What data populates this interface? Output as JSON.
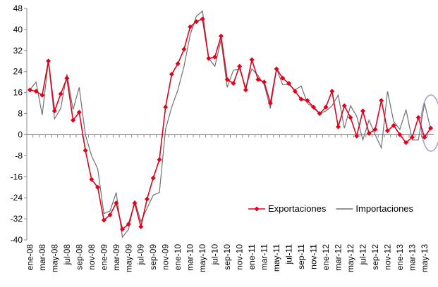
{
  "chart_data": {
    "type": "line",
    "categories": [
      "ene-08",
      null,
      "mar-08",
      null,
      "may-08",
      null,
      "jul-08",
      null,
      "sep-08",
      null,
      "nov-08",
      null,
      "ene-09",
      null,
      "mar-09",
      null,
      "may-09",
      null,
      "jul-09",
      null,
      "sep-09",
      null,
      "nov-09",
      null,
      "ene-10",
      null,
      "mar-10",
      null,
      "may-10",
      null,
      "jul-10",
      null,
      "sep-10",
      null,
      "nov-10",
      null,
      "ene-11",
      null,
      "mar-11",
      null,
      "may-11",
      null,
      "jul-11",
      null,
      "sep-11",
      null,
      "nov-11",
      null,
      "ene-12",
      null,
      "mar-12",
      null,
      "may-12",
      null,
      "jul-12",
      null,
      "sep-12",
      null,
      "nov-12",
      null,
      "ene-13",
      null,
      "mar-13",
      null,
      "may-13",
      null
    ],
    "series": [
      {
        "name": "Exportaciones",
        "color": "#e3001b",
        "marker": "diamond",
        "values": [
          17,
          16.5,
          15,
          28,
          9,
          15.5,
          21.5,
          5.5,
          8.5,
          -6,
          -17,
          -20,
          -32.5,
          -30.5,
          -26,
          -36,
          -34,
          -26,
          -35,
          -24.5,
          -16.5,
          -9.5,
          10.5,
          23,
          27,
          32.5,
          41,
          43,
          44,
          29,
          29.5,
          37.5,
          21,
          19.5,
          26,
          17,
          28.5,
          21,
          20,
          12,
          25,
          21.5,
          19.5,
          16.5,
          13.5,
          13,
          10.5,
          8,
          10.5,
          16.5,
          3,
          11,
          6.5,
          -0.5,
          9,
          0.5,
          2,
          13,
          1.5,
          3.5,
          0,
          -3,
          -1,
          6.5,
          -1,
          2.5
        ]
      },
      {
        "name": "Importaciones",
        "color": "#707070",
        "values": [
          17,
          20,
          7.5,
          28,
          6,
          10,
          23,
          9.5,
          18,
          0,
          -8,
          -13,
          -30,
          -29,
          -22,
          -39,
          -36,
          -25,
          -33,
          -28,
          -23,
          -22,
          2,
          10.5,
          17,
          26,
          38,
          45,
          47,
          29,
          26,
          36,
          18,
          24.5,
          25,
          18,
          25,
          22.5,
          19,
          10,
          25,
          19,
          19,
          17,
          18.5,
          12,
          10,
          8,
          9,
          11,
          15,
          2.5,
          11,
          7,
          -2,
          5.5,
          0,
          -5,
          16.5,
          5,
          2,
          9.5,
          -2,
          -2,
          12,
          2
        ]
      }
    ],
    "ylim": [
      -40,
      48
    ],
    "yticks": [
      -40,
      -32,
      -24,
      -16,
      -8,
      0,
      8,
      16,
      24,
      32,
      40,
      48
    ],
    "legend": "lower right",
    "grid": false
  }
}
